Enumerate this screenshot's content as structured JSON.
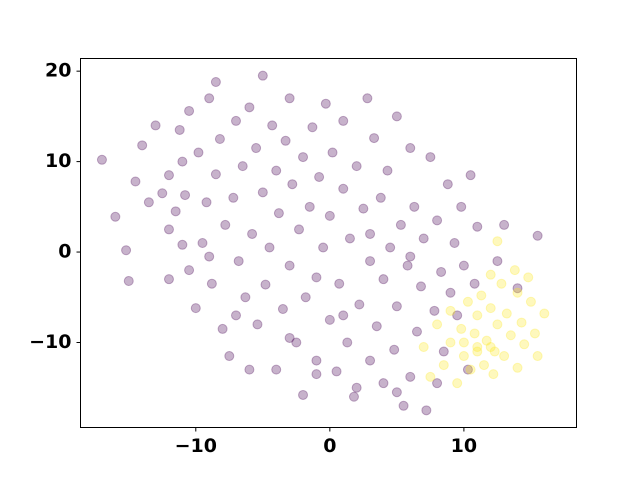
{
  "chart_data": {
    "type": "scatter",
    "xlim": [
      -18.6,
      18.4
    ],
    "ylim": [
      -19.4,
      21.4
    ],
    "xticks": [
      {
        "value": -10,
        "label": "−10"
      },
      0,
      10
    ],
    "yticks": [
      {
        "value": -10,
        "label": "−10"
      },
      0,
      10,
      20
    ],
    "series": [
      {
        "color": "#440154",
        "x": [
          -17,
          -16,
          -15.2,
          -15,
          -14.5,
          -14,
          -13.5,
          -13,
          -12.5,
          -12,
          -12,
          -11.5,
          -11.2,
          -11,
          -10.8,
          -10.5,
          -10,
          -10.5,
          -9.8,
          -9.5,
          -9.2,
          -9,
          -8.8,
          -8.5,
          -8.2,
          -8,
          -8.5,
          -7.8,
          -7.5,
          -7.2,
          -7,
          -6.8,
          -6.5,
          -6.3,
          -6,
          -5.8,
          -5.5,
          -5.4,
          -5,
          -5,
          -4.8,
          -4.5,
          -4.3,
          -4,
          -4,
          -3.8,
          -3.5,
          -3.3,
          -3,
          -3,
          -2.8,
          -2.5,
          -2.3,
          -2,
          -2,
          -1.8,
          -1.5,
          -1.3,
          -1,
          -1,
          -0.8,
          -0.5,
          -0.3,
          0,
          0,
          0.2,
          0.5,
          0.7,
          1,
          1,
          1.3,
          1.5,
          1.8,
          2,
          2.2,
          2.5,
          2.8,
          3,
          3,
          3.3,
          3.5,
          3.8,
          4,
          4,
          4.3,
          4.5,
          4.8,
          5,
          5,
          5.3,
          5.5,
          5.8,
          6,
          6,
          6.3,
          6.5,
          6.8,
          7,
          7.2,
          7.5,
          7.8,
          8,
          8.3,
          8.5,
          8.8,
          9,
          9.3,
          9.5,
          9.8,
          10,
          10.3,
          10.5,
          10.8,
          11,
          12.5,
          13,
          14,
          15.5,
          -12,
          -11,
          -9,
          -7,
          -3,
          1,
          3,
          6,
          2,
          -1,
          5,
          8,
          -6
        ],
        "values": [
          10.2,
          3.9,
          0.2,
          -3.2,
          7.8,
          11.8,
          5.5,
          14,
          6.5,
          2.5,
          8.5,
          4.5,
          13.5,
          0.8,
          6.3,
          -2,
          -6.2,
          15.6,
          11,
          1,
          5.5,
          17,
          -3.5,
          8.6,
          12.5,
          -8.5,
          18.8,
          3,
          -11.5,
          6,
          14.5,
          -1,
          9.5,
          -5,
          16,
          2,
          11.5,
          -8,
          6.6,
          19.5,
          -3.6,
          0.5,
          14,
          -13,
          9,
          4.3,
          -6.3,
          12.3,
          -1.5,
          17,
          7.5,
          -10,
          2.5,
          10.5,
          -15.8,
          -5,
          5,
          13.8,
          -2.8,
          -12,
          8.3,
          0.5,
          16.4,
          -7.5,
          4,
          11,
          -13.2,
          -3.5,
          7,
          14.5,
          -10,
          1.5,
          -16,
          9.5,
          -5.8,
          4.8,
          17,
          -12,
          -1,
          12.6,
          -8.2,
          6,
          -3,
          -14.5,
          9,
          0.5,
          -10.8,
          15,
          -6,
          3,
          -17,
          -1.5,
          11.5,
          -13.8,
          5,
          -8.8,
          -3.8,
          1.5,
          -17.5,
          10.5,
          -6.5,
          3.5,
          -2.2,
          -11,
          7.5,
          -4.5,
          1,
          -7,
          5,
          -1.5,
          -13,
          8.5,
          -3.5,
          2.8,
          -1,
          3,
          -4,
          1.8,
          -3,
          10,
          -0.5,
          -7,
          -9.5,
          -7,
          2,
          -0.5,
          -15,
          -13.5,
          -15.5,
          -14.5,
          -13
        ]
      },
      {
        "color": "#fde725",
        "x": [
          7,
          7.5,
          8,
          8.5,
          9,
          9,
          9.5,
          9.8,
          10,
          10.3,
          10.5,
          10.8,
          11,
          11,
          11.3,
          11.5,
          11.7,
          12,
          12,
          12.2,
          12.5,
          12.5,
          12.8,
          13,
          13.2,
          13.5,
          13.8,
          14,
          14,
          14.3,
          14.5,
          14.8,
          15,
          15.3,
          15.5,
          16,
          12,
          10,
          11,
          12.3
        ],
        "values": [
          -10.5,
          -13.8,
          -8,
          -12.5,
          -6.5,
          -10,
          -14.5,
          -8.5,
          -11.5,
          -5.5,
          -13,
          -9,
          -7,
          -11,
          -4.8,
          -12.5,
          -9.8,
          -6.2,
          -10.5,
          -13.5,
          -8,
          1.2,
          -3.5,
          -11.5,
          -6.8,
          -9.2,
          -2,
          -12.8,
          -4.5,
          -7.8,
          -10.2,
          -2.8,
          -5.5,
          -9,
          -11.5,
          -6.8,
          -2.5,
          -10,
          -10.5,
          -11
        ]
      }
    ]
  }
}
